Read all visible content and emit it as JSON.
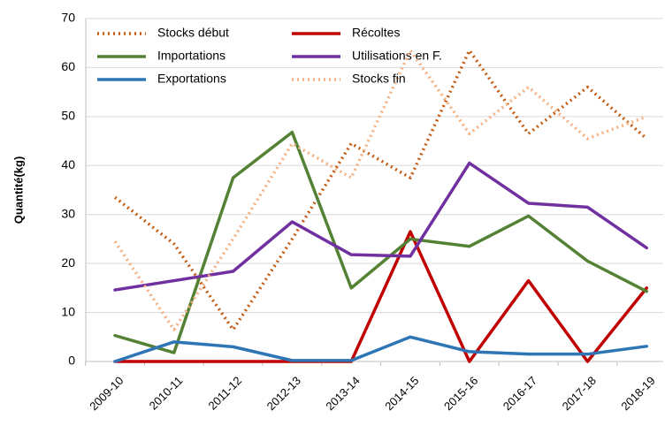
{
  "chart_data": {
    "type": "line",
    "y_label": "Quantité(kg)",
    "categories": [
      "2009-10",
      "2010-11",
      "2011-12",
      "2012-13",
      "2013-14",
      "2014-15",
      "2015-16",
      "2016-17",
      "2017-18",
      "2018-19"
    ],
    "series": [
      {
        "name": "Stocks début",
        "color": "#c55a11",
        "dash": "dotted",
        "values": [
          33.5,
          24,
          6.5,
          25,
          44.5,
          37.5,
          63.5,
          46.5,
          56,
          45.5
        ]
      },
      {
        "name": "Récoltes",
        "color": "#c00000",
        "dash": "solid",
        "values": [
          0,
          0,
          0,
          0,
          0,
          26.5,
          0,
          16.5,
          0,
          15
        ]
      },
      {
        "name": "Importations",
        "color": "#548235",
        "dash": "solid",
        "values": [
          5.3,
          1.8,
          37.5,
          46.8,
          15,
          25,
          23.5,
          29.7,
          20.5,
          14.3
        ]
      },
      {
        "name": "Utilisations en F.",
        "color": "#7030a0",
        "dash": "solid",
        "values": [
          14.6,
          16.5,
          18.4,
          28.5,
          21.8,
          21.5,
          40.5,
          32.3,
          31.5,
          23.2
        ]
      },
      {
        "name": "Exportations",
        "color": "#2e75b6",
        "dash": "solid",
        "values": [
          0,
          4,
          3,
          0.2,
          0.2,
          5,
          2,
          1.5,
          1.5,
          3.1
        ]
      },
      {
        "name": "Stocks fin",
        "color": "#f4b183",
        "dash": "dotted",
        "values": [
          24.5,
          6.5,
          25,
          44.5,
          37.5,
          63.5,
          46.5,
          56,
          45.5,
          50
        ]
      }
    ],
    "ylim": [
      0,
      70
    ],
    "yticks": [
      0,
      10,
      20,
      30,
      40,
      50,
      60,
      70
    ],
    "grid": true
  }
}
